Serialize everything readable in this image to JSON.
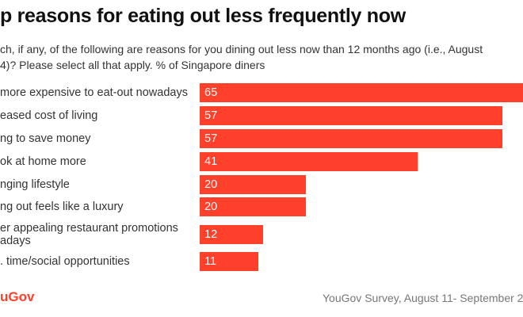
{
  "chart_data": {
    "type": "bar",
    "orientation": "horizontal",
    "title": "p reasons for eating out less frequently now",
    "subtitle_lines": [
      "ch, if any, of the following are reasons for you dining out less now than 12 months ago (i.e., August",
      "4)? Please select all that apply. % of Singapore diners"
    ],
    "categories": [
      "more expensive to eat-out nowadays",
      "eased cost of living",
      "ng to save money",
      "ok at home more",
      "nging lifestyle",
      "ng out feels like a luxury",
      "er appealing restaurant promotions\nadays",
      ". time/social opportunities"
    ],
    "values": [
      65,
      57,
      57,
      41,
      20,
      20,
      12,
      11
    ],
    "bar_color": "#ff412c",
    "grid": false
  },
  "footer": {
    "logo": "uGov",
    "source": "YouGov Survey, August 11- September 2,"
  }
}
